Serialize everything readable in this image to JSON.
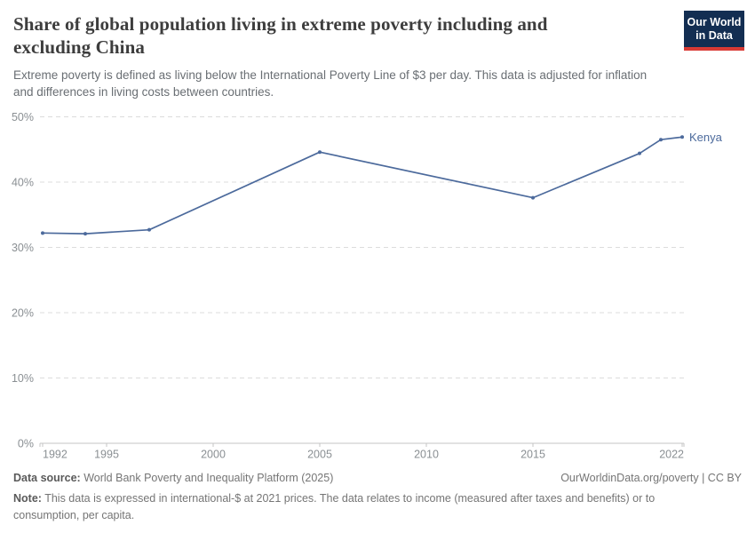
{
  "header": {
    "title_lines": [
      "Share of global population living in extreme poverty including and",
      "excluding China"
    ],
    "subtitle_lines": [
      "Extreme poverty is defined as living below the International Poverty Line of $3 per day. This data is adjusted for inflation",
      "and differences in living costs between countries."
    ],
    "logo": {
      "line1": "Our World",
      "line2": "in Data"
    }
  },
  "chart_data": {
    "type": "line",
    "title": "Share of global population living in extreme poverty including and excluding China",
    "xlabel": "",
    "ylabel": "",
    "xlim": [
      1992,
      2022
    ],
    "ylim": [
      0,
      50
    ],
    "grid": "horizontal-dashed",
    "legend_position": "end-of-line-label",
    "xticks": [
      1992,
      1995,
      2000,
      2005,
      2010,
      2015,
      2022
    ],
    "yticks": [
      0,
      10,
      20,
      30,
      40,
      50
    ],
    "ytick_suffix": "%",
    "series": [
      {
        "name": "Kenya",
        "color": "#4C6A9C",
        "x": [
          1992,
          1994,
          1997,
          2005,
          2015,
          2020,
          2021,
          2022
        ],
        "values": [
          32.2,
          32.1,
          32.7,
          44.6,
          37.6,
          44.4,
          46.5,
          46.9
        ]
      }
    ]
  },
  "footer": {
    "datasource_label": "Data source:",
    "datasource": "World Bank Poverty and Inequality Platform (2025)",
    "license": "OurWorldinData.org/poverty | CC BY",
    "note_label": "Note:",
    "note_lines": [
      "This data is expressed in international-$ at 2021 prices. The data relates to income (measured after taxes and benefits) or to",
      "consumption, per capita."
    ]
  },
  "colors": {
    "line": "#4C6A9C",
    "grid": "#dcdcdc",
    "axis": "#c4c4c4",
    "tick_label": "#8a8f93",
    "title": "#3d3d3d",
    "subtitle": "#696e73",
    "logo_bg": "#132e52",
    "logo_accent": "#d93a34"
  }
}
